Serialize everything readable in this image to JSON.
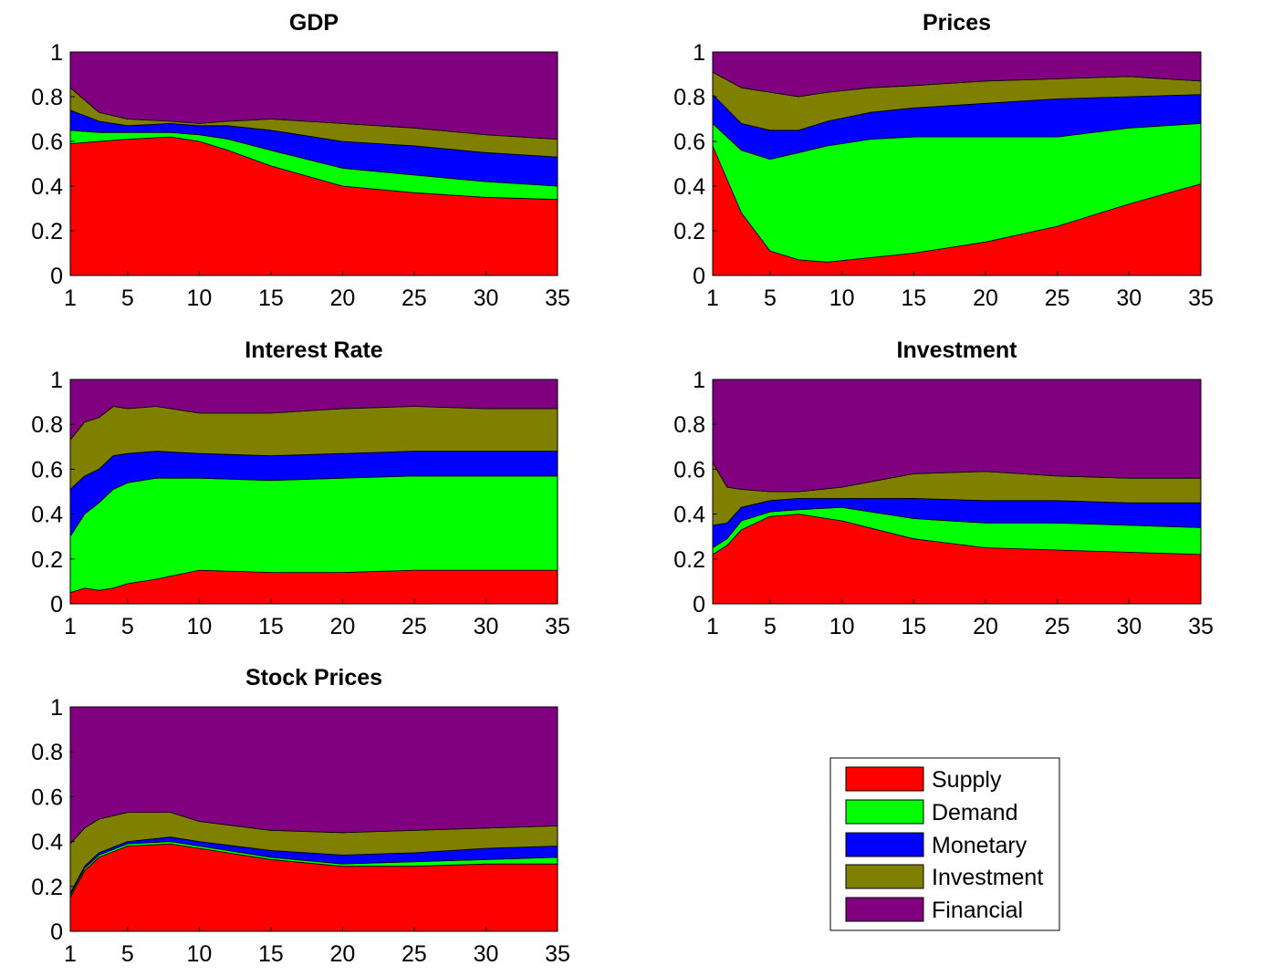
{
  "figure": {
    "background": "#ffffff"
  },
  "legend": {
    "placement": "bottom-right",
    "items": [
      {
        "label": "Supply",
        "color": "#ff0000"
      },
      {
        "label": "Demand",
        "color": "#00ff00"
      },
      {
        "label": "Monetary",
        "color": "#0000ff"
      },
      {
        "label": "Investment",
        "color": "#808000"
      },
      {
        "label": "Financial",
        "color": "#800080"
      }
    ]
  },
  "chart_data": [
    {
      "type": "area",
      "stacked": true,
      "title": "GDP",
      "x": [
        1,
        3,
        5,
        8,
        10,
        12,
        15,
        20,
        25,
        30,
        35
      ],
      "xticks": [
        1,
        5,
        10,
        15,
        20,
        25,
        30,
        35
      ],
      "xlim": [
        1,
        35
      ],
      "yticks": [
        0,
        0.2,
        0.4,
        0.6,
        0.8,
        1
      ],
      "ylim": [
        0,
        1
      ],
      "series": [
        {
          "name": "Supply",
          "values": [
            0.59,
            0.6,
            0.61,
            0.62,
            0.6,
            0.56,
            0.49,
            0.4,
            0.37,
            0.35,
            0.34
          ]
        },
        {
          "name": "Demand",
          "values": [
            0.06,
            0.04,
            0.03,
            0.02,
            0.03,
            0.05,
            0.07,
            0.08,
            0.08,
            0.07,
            0.06
          ]
        },
        {
          "name": "Monetary",
          "values": [
            0.09,
            0.05,
            0.03,
            0.04,
            0.04,
            0.06,
            0.09,
            0.12,
            0.13,
            0.13,
            0.13
          ]
        },
        {
          "name": "Investment",
          "values": [
            0.1,
            0.04,
            0.03,
            0.01,
            0.01,
            0.02,
            0.05,
            0.08,
            0.08,
            0.08,
            0.08
          ]
        },
        {
          "name": "Financial",
          "values": [
            0.16,
            0.27,
            0.3,
            0.31,
            0.32,
            0.31,
            0.3,
            0.32,
            0.34,
            0.37,
            0.39
          ]
        }
      ]
    },
    {
      "type": "area",
      "stacked": true,
      "title": "Prices",
      "x": [
        1,
        3,
        5,
        7,
        9,
        12,
        15,
        20,
        25,
        30,
        35
      ],
      "xticks": [
        1,
        5,
        10,
        15,
        20,
        25,
        30,
        35
      ],
      "xlim": [
        1,
        35
      ],
      "yticks": [
        0,
        0.2,
        0.4,
        0.6,
        0.8,
        1
      ],
      "ylim": [
        0,
        1
      ],
      "series": [
        {
          "name": "Supply",
          "values": [
            0.58,
            0.28,
            0.11,
            0.07,
            0.06,
            0.08,
            0.1,
            0.15,
            0.22,
            0.32,
            0.41
          ]
        },
        {
          "name": "Demand",
          "values": [
            0.1,
            0.28,
            0.41,
            0.48,
            0.52,
            0.53,
            0.52,
            0.47,
            0.4,
            0.34,
            0.27
          ]
        },
        {
          "name": "Monetary",
          "values": [
            0.13,
            0.12,
            0.13,
            0.1,
            0.11,
            0.12,
            0.13,
            0.15,
            0.17,
            0.14,
            0.13
          ]
        },
        {
          "name": "Investment",
          "values": [
            0.1,
            0.16,
            0.17,
            0.15,
            0.13,
            0.11,
            0.1,
            0.1,
            0.09,
            0.09,
            0.06
          ]
        },
        {
          "name": "Financial",
          "values": [
            0.09,
            0.16,
            0.18,
            0.2,
            0.18,
            0.16,
            0.15,
            0.13,
            0.12,
            0.11,
            0.13
          ]
        }
      ]
    },
    {
      "type": "area",
      "stacked": true,
      "title": "Interest Rate",
      "x": [
        1,
        2,
        3,
        4,
        5,
        7,
        10,
        15,
        20,
        25,
        30,
        35
      ],
      "xticks": [
        1,
        5,
        10,
        15,
        20,
        25,
        30,
        35
      ],
      "xlim": [
        1,
        35
      ],
      "yticks": [
        0,
        0.2,
        0.4,
        0.6,
        0.8,
        1
      ],
      "ylim": [
        0,
        1
      ],
      "series": [
        {
          "name": "Supply",
          "values": [
            0.05,
            0.07,
            0.06,
            0.07,
            0.09,
            0.11,
            0.15,
            0.14,
            0.14,
            0.15,
            0.15,
            0.15
          ]
        },
        {
          "name": "Demand",
          "values": [
            0.25,
            0.33,
            0.39,
            0.44,
            0.45,
            0.45,
            0.41,
            0.41,
            0.42,
            0.42,
            0.42,
            0.42
          ]
        },
        {
          "name": "Monetary",
          "values": [
            0.21,
            0.17,
            0.15,
            0.15,
            0.13,
            0.12,
            0.11,
            0.11,
            0.11,
            0.11,
            0.11,
            0.11
          ]
        },
        {
          "name": "Investment",
          "values": [
            0.22,
            0.24,
            0.23,
            0.22,
            0.2,
            0.2,
            0.18,
            0.19,
            0.2,
            0.2,
            0.19,
            0.19
          ]
        },
        {
          "name": "Financial",
          "values": [
            0.27,
            0.19,
            0.17,
            0.12,
            0.13,
            0.12,
            0.15,
            0.15,
            0.13,
            0.12,
            0.13,
            0.13
          ]
        }
      ]
    },
    {
      "type": "area",
      "stacked": true,
      "title": "Investment",
      "x": [
        1,
        2,
        3,
        5,
        7,
        10,
        15,
        20,
        25,
        30,
        35
      ],
      "xticks": [
        1,
        5,
        10,
        15,
        20,
        25,
        30,
        35
      ],
      "xlim": [
        1,
        35
      ],
      "yticks": [
        0,
        0.2,
        0.4,
        0.6,
        0.8,
        1
      ],
      "ylim": [
        0,
        1
      ],
      "series": [
        {
          "name": "Supply",
          "values": [
            0.22,
            0.26,
            0.33,
            0.39,
            0.4,
            0.37,
            0.29,
            0.25,
            0.24,
            0.23,
            0.22
          ]
        },
        {
          "name": "Demand",
          "values": [
            0.03,
            0.03,
            0.04,
            0.02,
            0.02,
            0.06,
            0.09,
            0.11,
            0.12,
            0.12,
            0.12
          ]
        },
        {
          "name": "Monetary",
          "values": [
            0.1,
            0.07,
            0.06,
            0.05,
            0.05,
            0.04,
            0.09,
            0.1,
            0.1,
            0.1,
            0.11
          ]
        },
        {
          "name": "Investment",
          "values": [
            0.28,
            0.16,
            0.08,
            0.04,
            0.03,
            0.05,
            0.11,
            0.13,
            0.11,
            0.11,
            0.11
          ]
        },
        {
          "name": "Financial",
          "values": [
            0.37,
            0.48,
            0.49,
            0.5,
            0.5,
            0.48,
            0.42,
            0.41,
            0.43,
            0.44,
            0.44
          ]
        }
      ]
    },
    {
      "type": "area",
      "stacked": true,
      "title": "Stock Prices",
      "x": [
        1,
        2,
        3,
        5,
        8,
        10,
        15,
        20,
        25,
        30,
        35
      ],
      "xticks": [
        1,
        5,
        10,
        15,
        20,
        25,
        30,
        35
      ],
      "xlim": [
        1,
        35
      ],
      "yticks": [
        0,
        0.2,
        0.4,
        0.6,
        0.8,
        1
      ],
      "ylim": [
        0,
        1
      ],
      "series": [
        {
          "name": "Supply",
          "values": [
            0.15,
            0.27,
            0.33,
            0.38,
            0.39,
            0.37,
            0.32,
            0.29,
            0.29,
            0.3,
            0.3
          ]
        },
        {
          "name": "Demand",
          "values": [
            0.01,
            0.01,
            0.01,
            0.01,
            0.01,
            0.01,
            0.01,
            0.01,
            0.02,
            0.02,
            0.03
          ]
        },
        {
          "name": "Monetary",
          "values": [
            0.01,
            0.01,
            0.01,
            0.01,
            0.02,
            0.02,
            0.03,
            0.04,
            0.04,
            0.05,
            0.05
          ]
        },
        {
          "name": "Investment",
          "values": [
            0.22,
            0.17,
            0.15,
            0.13,
            0.11,
            0.09,
            0.09,
            0.1,
            0.1,
            0.09,
            0.09
          ]
        },
        {
          "name": "Financial",
          "values": [
            0.61,
            0.54,
            0.5,
            0.47,
            0.47,
            0.51,
            0.55,
            0.56,
            0.55,
            0.54,
            0.53
          ]
        }
      ]
    }
  ]
}
